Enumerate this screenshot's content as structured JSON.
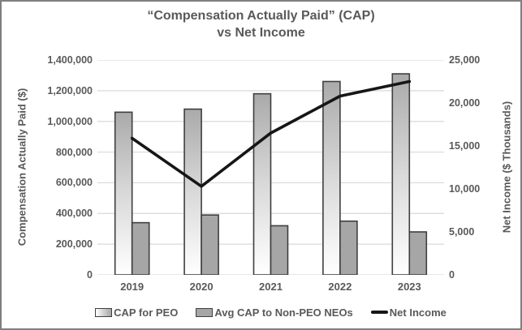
{
  "chart_data": {
    "type": "bar+line combo",
    "title_lines": [
      "“Compensation Actually Paid” (CAP)",
      "vs Net Income"
    ],
    "categories": [
      "2019",
      "2020",
      "2021",
      "2022",
      "2023"
    ],
    "series": [
      {
        "name": "CAP for PEO",
        "type": "bar",
        "axis": "left",
        "values": [
          1060000,
          1080000,
          1180000,
          1260000,
          1310000
        ]
      },
      {
        "name": "Avg CAP to Non-PEO NEOs",
        "type": "bar",
        "axis": "left",
        "values": [
          340000,
          390000,
          320000,
          350000,
          280000
        ]
      },
      {
        "name": "Net Income",
        "type": "line",
        "axis": "right",
        "values": [
          15900,
          10300,
          16500,
          20800,
          22500
        ]
      }
    ],
    "left_axis": {
      "label": "Compensation Actually Paid ($)",
      "min": 0,
      "max": 1400000,
      "step": 200000,
      "tick_labels": [
        "1,400,000",
        "1,200,000",
        "1,000,000",
        "800,000",
        "600,000",
        "400,000",
        "200,000",
        "0"
      ]
    },
    "right_axis": {
      "label": "Net Income ($ Thousands)",
      "min": 0,
      "max": 25000,
      "step": 5000,
      "tick_labels": [
        "25,000",
        "20,000",
        "15,000",
        "10,000",
        "5,000",
        "0"
      ]
    },
    "grid": true,
    "legend_position": "bottom",
    "colors": {
      "bar1_top": "#aaaaaa",
      "bar1_mid": "#d9d9d9",
      "bar1_bottom": "#ffffff",
      "bar_border": "#3f3f3f",
      "bar2_fill": "#a6a6a6",
      "line": "#161616",
      "grid": "#d9d9d9",
      "text": "#595959",
      "frame_border": "#7f7f7f"
    }
  },
  "legend": {
    "items": [
      {
        "label": "CAP for PEO",
        "swatch": "gradient-bar"
      },
      {
        "label": "Avg CAP to Non-PEO NEOs",
        "swatch": "gray-bar"
      },
      {
        "label": "Net Income",
        "swatch": "black-line"
      }
    ]
  }
}
